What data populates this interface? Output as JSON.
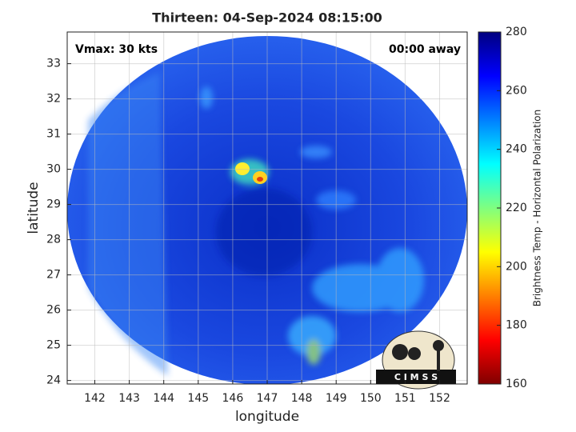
{
  "chart_data": {
    "type": "image",
    "title": "Thirteen: 04-Sep-2024 08:15:00",
    "annotations": [
      "Vmax: 30 kts",
      "00:00 away"
    ],
    "xlabel": "longitude",
    "ylabel": "latitude",
    "xlim": [
      141.2,
      152.8
    ],
    "ylim": [
      23.9,
      33.9
    ],
    "xticks": [
      142,
      143,
      144,
      145,
      146,
      147,
      148,
      149,
      150,
      151,
      152
    ],
    "yticks": [
      24,
      25,
      26,
      27,
      28,
      29,
      30,
      31,
      32,
      33
    ],
    "grid": true,
    "colorbar": {
      "label": "Brightness Temp - Horizontal Polarization",
      "lim": [
        160,
        280
      ],
      "ticks": [
        160,
        180,
        200,
        220,
        240,
        260,
        280
      ],
      "colormap": "jet"
    },
    "logo": "C I M S S"
  }
}
